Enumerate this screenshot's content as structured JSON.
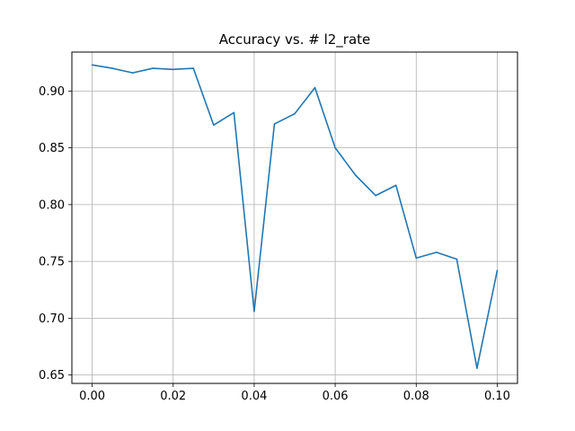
{
  "chart_data": {
    "type": "line",
    "title": "Accuracy vs. # l2_rate",
    "xlabel": "",
    "ylabel": "",
    "xlim": [
      -0.005,
      0.105
    ],
    "ylim": [
      0.6426,
      0.9343
    ],
    "x_ticks": [
      0.0,
      0.02,
      0.04,
      0.06,
      0.08,
      0.1
    ],
    "x_tick_labels": [
      "0.00",
      "0.02",
      "0.04",
      "0.06",
      "0.08",
      "0.10"
    ],
    "y_ticks": [
      0.65,
      0.7,
      0.75,
      0.8,
      0.85,
      0.9
    ],
    "y_tick_labels": [
      "0.65",
      "0.70",
      "0.75",
      "0.80",
      "0.85",
      "0.90"
    ],
    "grid": true,
    "series": [
      {
        "color": "#1f77b4",
        "x": [
          0.0,
          0.005,
          0.01,
          0.015,
          0.02,
          0.025,
          0.03,
          0.035,
          0.04,
          0.045,
          0.05,
          0.055,
          0.06,
          0.065,
          0.07,
          0.075,
          0.08,
          0.085,
          0.09,
          0.095,
          0.1
        ],
        "y": [
          0.923,
          0.92,
          0.916,
          0.92,
          0.919,
          0.92,
          0.87,
          0.881,
          0.706,
          0.871,
          0.88,
          0.903,
          0.85,
          0.826,
          0.808,
          0.817,
          0.753,
          0.758,
          0.752,
          0.656,
          0.742
        ]
      }
    ]
  }
}
